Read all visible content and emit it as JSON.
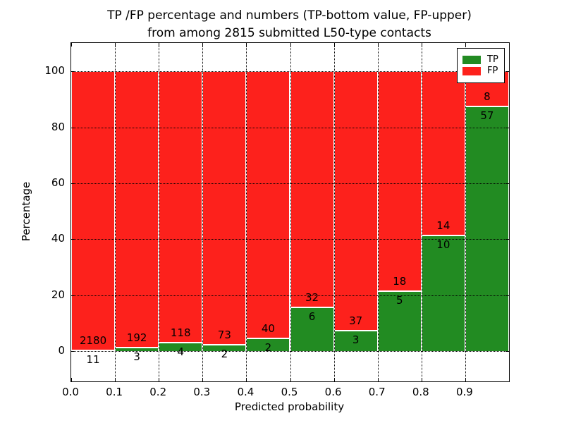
{
  "figure": {
    "title_line1": "TP /FP percentage and numbers (TP-bottom value, FP-upper)",
    "title_line2": "from among 2815 submitted L50-type contacts",
    "xlabel": "Predicted probability",
    "ylabel": "Percentage"
  },
  "legend": {
    "items": [
      {
        "label": "TP",
        "color": "#228b22"
      },
      {
        "label": "FP",
        "color": "#fd211c"
      }
    ]
  },
  "colors": {
    "tp_green": "#228b22",
    "fp_red": "#fd211c",
    "edge_white": "#ffffff",
    "grid_black": "#000000"
  },
  "chart_data": {
    "type": "bar",
    "stacked": true,
    "normalized_to_percent": true,
    "title": "TP /FP percentage and numbers (TP-bottom value, FP-upper) from among 2815 submitted L50-type contacts",
    "xlabel": "Predicted probability",
    "ylabel": "Percentage",
    "total_submitted": 2815,
    "categories": [
      "0.0-0.1",
      "0.1-0.2",
      "0.2-0.3",
      "0.3-0.4",
      "0.4-0.5",
      "0.5-0.6",
      "0.6-0.7",
      "0.7-0.8",
      "0.8-0.9",
      "0.9-1.0"
    ],
    "bin_starts": [
      0.0,
      0.1,
      0.2,
      0.3,
      0.4,
      0.5,
      0.6,
      0.7,
      0.8,
      0.9
    ],
    "bin_width": 0.1,
    "series": [
      {
        "name": "TP",
        "color": "#228b22",
        "counts": [
          11,
          3,
          4,
          2,
          2,
          6,
          3,
          5,
          10,
          57
        ]
      },
      {
        "name": "FP",
        "color": "#fd211c",
        "counts": [
          2180,
          192,
          118,
          73,
          40,
          32,
          37,
          18,
          14,
          8
        ]
      }
    ],
    "tp_percent_of_bin": [
      0.5,
      1.5,
      3.3,
      2.7,
      4.8,
      15.8,
      7.5,
      21.7,
      41.7,
      87.7
    ],
    "x_ticks": [
      "0.0",
      "0.1",
      "0.2",
      "0.3",
      "0.4",
      "0.5",
      "0.6",
      "0.7",
      "0.8",
      "0.9"
    ],
    "y_ticks": [
      0,
      20,
      40,
      60,
      80,
      100
    ],
    "xlim": [
      0.0,
      1.0
    ],
    "ylim": [
      -10.8,
      110.1
    ],
    "grid": "dotted",
    "legend_position": "upper right"
  }
}
